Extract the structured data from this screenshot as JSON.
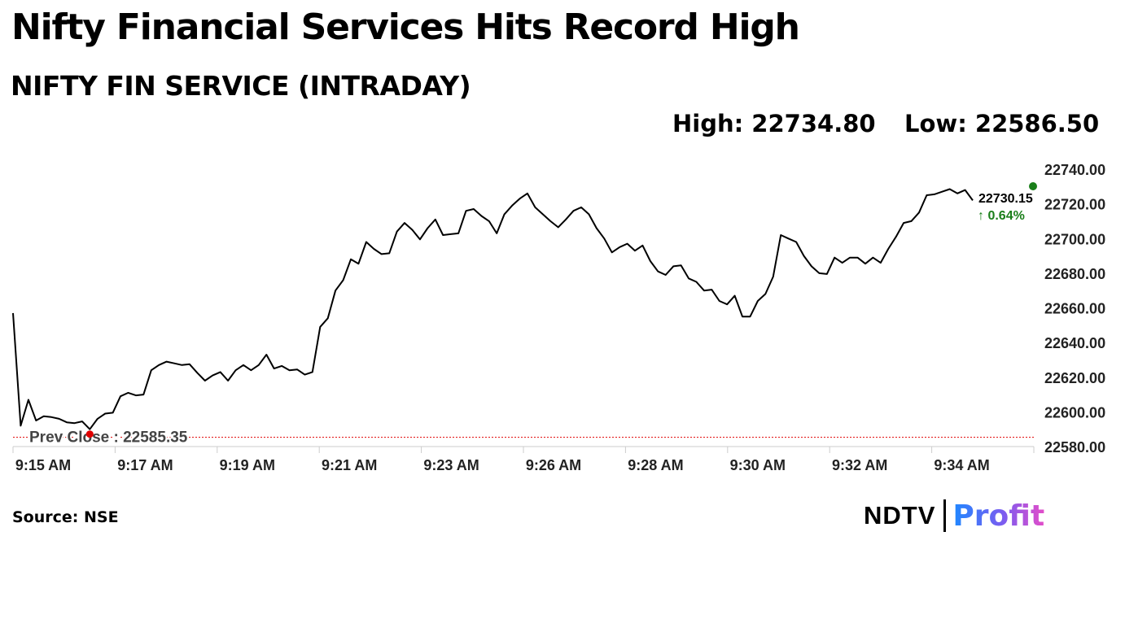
{
  "header": {
    "title": "Nifty Financial Services Hits Record High",
    "subtitle": "NIFTY FIN SERVICE (INTRADAY)",
    "high_text": "High: 22734.80",
    "low_text": "Low: 22586.50"
  },
  "footer": {
    "source": "Source: NSE",
    "logo_ndtv": "NDTV",
    "logo_profit": "Profit"
  },
  "colors": {
    "line": "#000000",
    "prev_close": "#e00000",
    "gain": "#1a7f1a",
    "grid_axis": "#cccccc"
  },
  "chart_data": {
    "type": "line",
    "x_tick_labels": [
      "9:15 AM",
      "9:17 AM",
      "9:19 AM",
      "9:21 AM",
      "9:23 AM",
      "9:26 AM",
      "9:28 AM",
      "9:30 AM",
      "9:32 AM",
      "9:34 AM"
    ],
    "y_tick_labels": [
      "22740.00",
      "22720.00",
      "22700.00",
      "22680.00",
      "22660.00",
      "22640.00",
      "22620.00",
      "22600.00",
      "22580.00"
    ],
    "ylim": [
      22580,
      22740
    ],
    "x_range_minutes": [
      0,
      20.5
    ],
    "x_unit": "minutes after 9:15 AM",
    "prev_close": 22585.35,
    "prev_close_label": "Prev Close : 22585.35",
    "last_value": 22730.15,
    "last_value_label": "22730.15",
    "change_label": "↑ 0.64%",
    "series": [
      {
        "values": [
          22657.0,
          22592.0,
          22607.0,
          22595.0,
          22597.5,
          22597.0,
          22596.0,
          22594.0,
          22593.5,
          22594.5,
          22590.0,
          22596.0,
          22599.0,
          22599.5,
          22609.0,
          22611.0,
          22609.5,
          22610.0,
          22624.0,
          22627.0,
          22629.0,
          22628.0,
          22627.0,
          22627.5,
          22622.5,
          22618.0,
          22621.0,
          22623.0,
          22618.0,
          22624.0,
          22627.0,
          22624.0,
          22627.0,
          22633.0,
          22625.0,
          22626.5,
          22624.0,
          22624.5,
          22621.5,
          22623.0,
          22649.0,
          22654.0,
          22670.0,
          22676.0,
          22688.0,
          22685.5,
          22698.0,
          22694.0,
          22691.0,
          22691.5,
          22704.0,
          22709.0,
          22705.0,
          22699.5,
          22706.0,
          22711.0,
          22702.0,
          22702.5,
          22703.0,
          22716.0,
          22717.0,
          22713.0,
          22710.0,
          22703.0,
          22714.0,
          22719.0,
          22723.0,
          22726.0,
          22718.0,
          22714.0,
          22710.0,
          22706.5,
          22711.0,
          22716.0,
          22718.0,
          22714.0,
          22706.0,
          22700.0,
          22692.0,
          22695.0,
          22697.0,
          22693.0,
          22696.0,
          22687.0,
          22681.0,
          22679.0,
          22684.0,
          22684.5,
          22677.0,
          22675.0,
          22670.0,
          22670.5,
          22664.0,
          22662.0,
          22667.0,
          22655.0,
          22655.0,
          22664.0,
          22668.0,
          22678.0,
          22702.0,
          22700.0,
          22698.0,
          22690.0,
          22684.0,
          22680.0,
          22679.5,
          22689.0,
          22686.0,
          22689.0,
          22689.0,
          22685.5,
          22689.0,
          22686.0,
          22694.0,
          22701.0,
          22709.0,
          22710.0,
          22715.0,
          22725.0,
          22725.5,
          22727.0,
          22728.5,
          22726.0,
          22728.0,
          22722.0
        ]
      }
    ]
  }
}
